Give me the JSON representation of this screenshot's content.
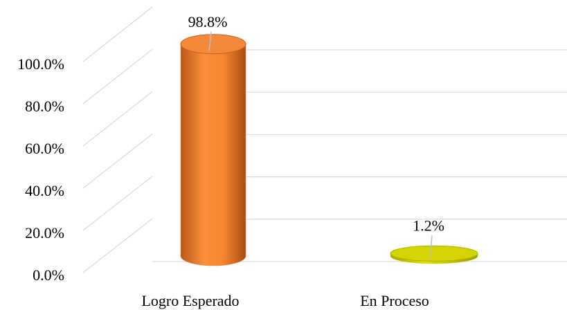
{
  "chart_data": {
    "type": "bar",
    "categories": [
      "Logro Esperado",
      "En Proceso"
    ],
    "values": [
      98.8,
      1.2
    ],
    "value_labels": [
      "98.8%",
      "1.2%"
    ],
    "colors": [
      "#f5893a",
      "#d4d400"
    ],
    "ylim": [
      0,
      100
    ],
    "yticks": [
      {
        "value": 0,
        "label": "0.0%"
      },
      {
        "value": 20,
        "label": "20.0%"
      },
      {
        "value": 40,
        "label": "40.0%"
      },
      {
        "value": 60,
        "label": "60.0%"
      },
      {
        "value": 80,
        "label": "80.0%"
      },
      {
        "value": 100,
        "label": "100.0%"
      }
    ],
    "grid": true
  }
}
